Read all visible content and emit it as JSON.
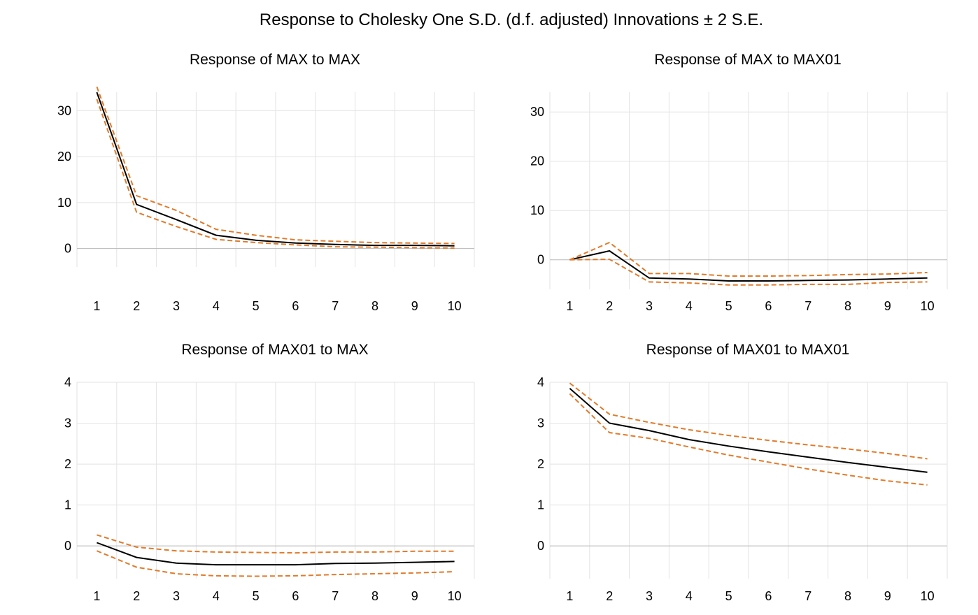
{
  "figure": {
    "title": "Response to Cholesky One S.D. (d.f. adjusted) Innovations ± 2 S.E."
  },
  "colors": {
    "response": "#000000",
    "band": "#E07B2A",
    "grid": "#e3e3e3",
    "zero_line": "#b8b8b8"
  },
  "chart_data": [
    {
      "type": "line",
      "title": "Response of MAX to MAX",
      "x": [
        1,
        2,
        3,
        4,
        5,
        6,
        7,
        8,
        9,
        10
      ],
      "ylim": [
        -4,
        34
      ],
      "yticks": [
        0,
        10,
        20,
        30
      ],
      "grid": true,
      "legend": "none",
      "series": [
        {
          "role": "response",
          "values": [
            34,
            9.6,
            6.3,
            2.9,
            1.8,
            1.2,
            0.9,
            0.7,
            0.7,
            0.6
          ]
        },
        {
          "role": "upper-band",
          "values": [
            35.2,
            11.5,
            8.3,
            4.2,
            2.9,
            1.9,
            1.6,
            1.3,
            1.2,
            1.1
          ]
        },
        {
          "role": "lower-band",
          "values": [
            32.5,
            7.9,
            4.8,
            2.0,
            1.3,
            0.8,
            0.4,
            0.3,
            0.2,
            0.1
          ]
        }
      ]
    },
    {
      "type": "line",
      "title": "Response of MAX to MAX01",
      "x": [
        1,
        2,
        3,
        4,
        5,
        6,
        7,
        8,
        9,
        10
      ],
      "ylim": [
        -6,
        34
      ],
      "yticks": [
        0,
        10,
        20,
        30
      ],
      "grid": true,
      "legend": "none",
      "series": [
        {
          "role": "response",
          "values": [
            0,
            1.8,
            -3.7,
            -3.9,
            -4.3,
            -4.3,
            -4.2,
            -4.1,
            -3.9,
            -3.7
          ]
        },
        {
          "role": "upper-band",
          "values": [
            0,
            3.5,
            -2.8,
            -2.8,
            -3.3,
            -3.3,
            -3.2,
            -3.0,
            -2.9,
            -2.6
          ]
        },
        {
          "role": "lower-band",
          "values": [
            0,
            0.1,
            -4.5,
            -4.7,
            -5.1,
            -5.1,
            -5.0,
            -5.0,
            -4.6,
            -4.5
          ]
        }
      ]
    },
    {
      "type": "line",
      "title": "Response of MAX01 to MAX",
      "x": [
        1,
        2,
        3,
        4,
        5,
        6,
        7,
        8,
        9,
        10
      ],
      "ylim": [
        -0.8,
        4
      ],
      "yticks": [
        0,
        1,
        2,
        3,
        4
      ],
      "grid": true,
      "legend": "none",
      "series": [
        {
          "role": "response",
          "values": [
            0.08,
            -0.28,
            -0.42,
            -0.46,
            -0.46,
            -0.46,
            -0.43,
            -0.42,
            -0.4,
            -0.38
          ]
        },
        {
          "role": "upper-band",
          "values": [
            0.27,
            -0.03,
            -0.12,
            -0.15,
            -0.16,
            -0.17,
            -0.15,
            -0.15,
            -0.13,
            -0.13
          ]
        },
        {
          "role": "lower-band",
          "values": [
            -0.12,
            -0.52,
            -0.68,
            -0.73,
            -0.74,
            -0.73,
            -0.7,
            -0.68,
            -0.66,
            -0.63
          ]
        }
      ]
    },
    {
      "type": "line",
      "title": "Response of MAX01 to MAX01",
      "x": [
        1,
        2,
        3,
        4,
        5,
        6,
        7,
        8,
        9,
        10
      ],
      "ylim": [
        -0.8,
        4
      ],
      "yticks": [
        0,
        1,
        2,
        3,
        4
      ],
      "grid": true,
      "legend": "none",
      "series": [
        {
          "role": "response",
          "values": [
            3.85,
            3.0,
            2.82,
            2.6,
            2.44,
            2.3,
            2.17,
            2.04,
            1.92,
            1.8
          ]
        },
        {
          "role": "upper-band",
          "values": [
            3.98,
            3.22,
            3.02,
            2.84,
            2.7,
            2.58,
            2.47,
            2.37,
            2.26,
            2.13
          ]
        },
        {
          "role": "lower-band",
          "values": [
            3.72,
            2.77,
            2.63,
            2.42,
            2.22,
            2.05,
            1.88,
            1.73,
            1.59,
            1.49
          ]
        }
      ]
    }
  ]
}
